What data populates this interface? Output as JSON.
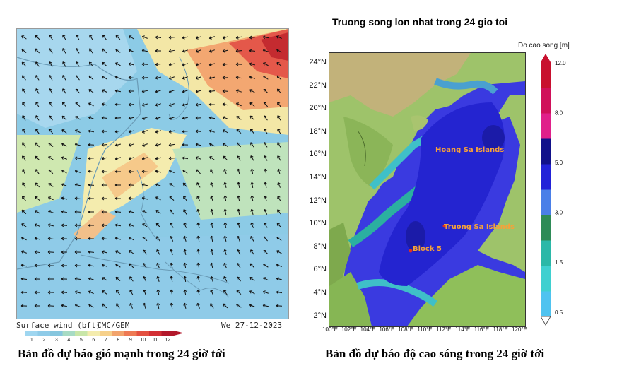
{
  "left": {
    "footer_left": "Surface wind (bft)",
    "footer_mid": "CMC/GEM",
    "footer_right": "We 27-12-2023",
    "colorbar_ticks": [
      "1",
      "2",
      "3",
      "4",
      "5",
      "6",
      "7",
      "8",
      "9",
      "10",
      "11",
      "12"
    ],
    "colorbar_colors": [
      "#9fd6f0",
      "#8fcbe8",
      "#86c6de",
      "#a7dbc4",
      "#c8e6a8",
      "#f4ecae",
      "#f6d08a",
      "#f2a36c",
      "#ee7a54",
      "#e35040",
      "#d22f34",
      "#b2182b"
    ],
    "caption": "Bản đồ dự báo gió mạnh trong 24 giờ tới"
  },
  "right": {
    "title": "Truong song lon nhat trong 24 gio toi",
    "unit_label": "Do cao song [m]",
    "lat_labels": [
      "24°N",
      "22°N",
      "20°N",
      "18°N",
      "16°N",
      "14°N",
      "12°N",
      "10°N",
      "8°N",
      "6°N",
      "4°N",
      "2°N"
    ],
    "lon_labels": [
      "100°E",
      "102°E",
      "104°E",
      "106°E",
      "108°E",
      "110°E",
      "112°E",
      "114°E",
      "116°E",
      "118°E",
      "120°E"
    ],
    "colorbar_ticks": [
      "12.0",
      "8.0",
      "5.0",
      "3.0",
      "1.5",
      "0.5"
    ],
    "colorbar_colors": [
      "#4fc3f0",
      "#3fd0d0",
      "#2bb8a8",
      "#2e8b57",
      "#4a7fe8",
      "#2222d8",
      "#11118a",
      "#e0208a",
      "#d0105a",
      "#c8102e"
    ],
    "places": {
      "hoang_sa": "Hoang Sa Islands",
      "truong_sa": "Truong Sa Islands",
      "block5": "Block 5"
    },
    "caption": "Bản đồ dự báo độ cao sóng trong 24 giờ tới"
  }
}
